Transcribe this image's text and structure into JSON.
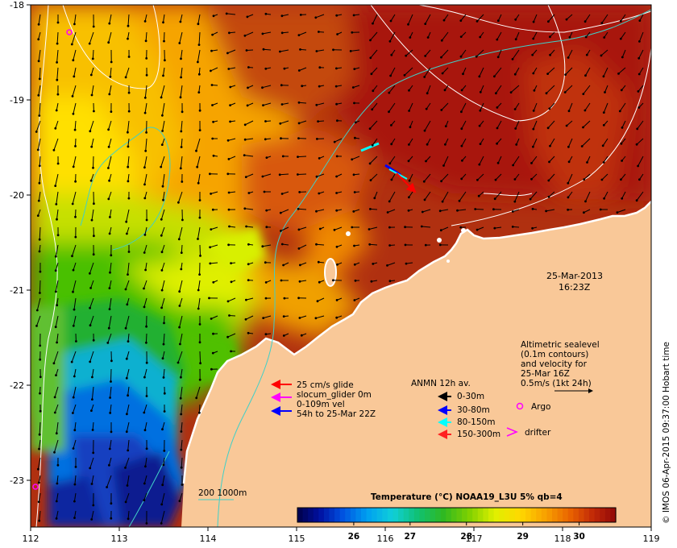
{
  "map": {
    "x_ticks": [
      "112",
      "113",
      "114",
      "115",
      "116",
      "117",
      "118",
      "119"
    ],
    "y_ticks": [
      "-18",
      "-19",
      "-20",
      "-21",
      "-22",
      "-23"
    ],
    "date": "25-Mar-2013",
    "time": "16:23Z",
    "credit": "© IMOS 06-Apr-2015 09:37:00 Hobart time"
  },
  "altimetry_note": {
    "line1": "Altimetric sealevel",
    "line2": "(0.1m contours)",
    "line3": "and velocity for",
    "line4": "25-Mar 16Z",
    "line5": "0.5m/s (1kt 24h)"
  },
  "legend_glider": {
    "item1": "25 cm/s glide",
    "item2": "slocum_glider 0m",
    "item3": "0-109m vel",
    "item4": "54h to 25-Mar 22Z"
  },
  "legend_anmn": {
    "title": "ANMN 12h av.",
    "items": [
      "0-30m",
      "30-80m",
      "80-150m",
      "150-300m"
    ]
  },
  "legend_markers": {
    "argo": "Argo",
    "drifter": "drifter"
  },
  "isobath_label": "200  1000m",
  "colorbar": {
    "title": "Temperature (°C) NOAA19_L3U 5% qb=4",
    "ticks": [
      "26",
      "27",
      "28",
      "29",
      "30"
    ],
    "tick_values": [
      26,
      27,
      28,
      29,
      30
    ],
    "range": [
      25.0,
      30.65
    ]
  },
  "colors": {
    "land": "#f9c898",
    "warm": "#a11a08",
    "arrow_black": "#000000",
    "glider_red": "#ff0000",
    "glider_magenta": "#ff00ff",
    "glider_blue": "#0000ff",
    "anmn_cyan": "#00ffff",
    "contour": "#ffffff",
    "isobath": "#40d0c8"
  }
}
